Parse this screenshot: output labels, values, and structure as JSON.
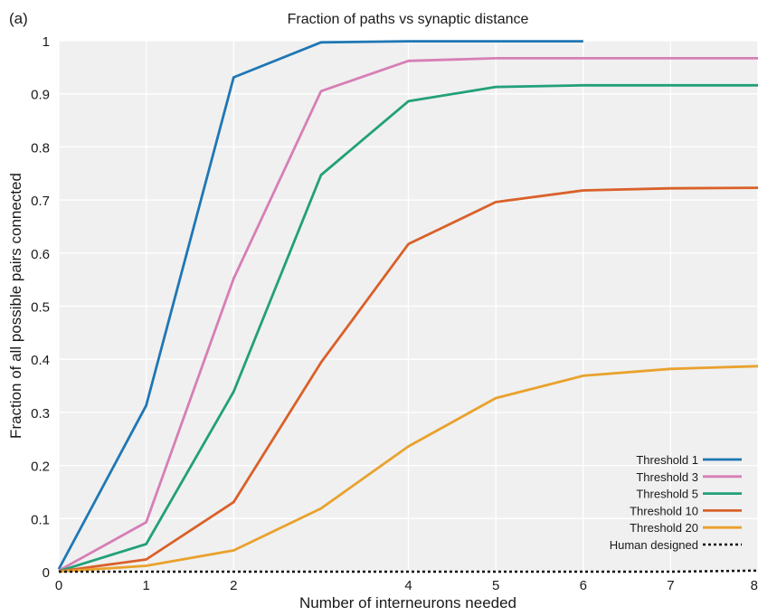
{
  "panel_label": "(a)",
  "chart_data": {
    "type": "line",
    "title": "Fraction of paths vs synaptic distance",
    "xlabel": "Number of interneurons needed",
    "ylabel": "Fraction of all possible pairs connected",
    "xlim": [
      0,
      8
    ],
    "ylim": [
      0,
      1
    ],
    "xticks": [
      "0",
      "1",
      "2",
      "4",
      "5",
      "6",
      "7",
      "8"
    ],
    "yticks": [
      "0",
      "0.1",
      "0.2",
      "0.3",
      "0.4",
      "0.5",
      "0.6",
      "0.7",
      "0.8",
      "0.9",
      "1"
    ],
    "grid": true,
    "legend_position": "bottom-right",
    "series": [
      {
        "name": "Threshold  1",
        "color": "#1f77b4",
        "dash": "solid",
        "x": [
          0,
          1,
          2,
          3,
          4,
          5,
          6
        ],
        "y": [
          0.005,
          0.313,
          0.931,
          0.997,
          0.999,
          0.999,
          0.999
        ]
      },
      {
        "name": "Threshold 3",
        "color": "#d67fb6",
        "dash": "solid",
        "x": [
          0,
          1,
          2,
          3,
          4,
          5,
          6,
          7,
          8
        ],
        "y": [
          0.002,
          0.093,
          0.552,
          0.905,
          0.962,
          0.967,
          0.967,
          0.967,
          0.967
        ]
      },
      {
        "name": "Threshold 5",
        "color": "#22a079",
        "dash": "solid",
        "x": [
          0,
          1,
          2,
          3,
          4,
          5,
          6,
          7,
          8
        ],
        "y": [
          0.001,
          0.052,
          0.339,
          0.747,
          0.886,
          0.913,
          0.916,
          0.916,
          0.916
        ]
      },
      {
        "name": "Threshold 10",
        "color": "#d9612a",
        "dash": "solid",
        "x": [
          0,
          1,
          2,
          3,
          4,
          5,
          6,
          7,
          8
        ],
        "y": [
          0.0005,
          0.023,
          0.131,
          0.394,
          0.617,
          0.696,
          0.718,
          0.722,
          0.723
        ]
      },
      {
        "name": "Threshold 20",
        "color": "#e9a22d",
        "dash": "solid",
        "x": [
          0,
          1,
          2,
          3,
          4,
          5,
          6,
          7,
          8
        ],
        "y": [
          0.0002,
          0.011,
          0.04,
          0.119,
          0.236,
          0.327,
          0.369,
          0.382,
          0.387
        ]
      },
      {
        "name": "Human designed",
        "color": "#111111",
        "dash": "dotted",
        "x": [
          0,
          1,
          2,
          3,
          4,
          5,
          6,
          7,
          8
        ],
        "y": [
          0.0,
          0.0,
          0.0,
          0.0,
          0.0,
          0.0,
          0.0,
          0.0,
          0.002
        ]
      }
    ]
  }
}
